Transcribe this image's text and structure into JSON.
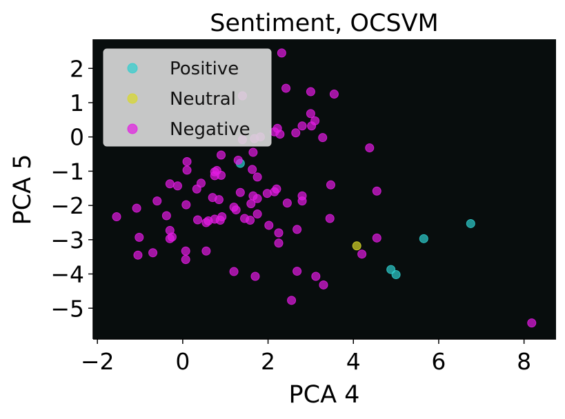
{
  "chart_data": {
    "type": "scatter",
    "title": "Sentiment, OCSVM",
    "xlabel": "PCA 4",
    "ylabel": "PCA 5",
    "xlim": [
      -2.1,
      8.75
    ],
    "ylim": [
      -5.9,
      2.85
    ],
    "xticks": [
      -2,
      0,
      2,
      4,
      6,
      8
    ],
    "yticks": [
      2,
      1,
      0,
      -1,
      -2,
      -3,
      -4,
      -5
    ],
    "xtick_labels": [
      "−2",
      "0",
      "2",
      "4",
      "6",
      "8"
    ],
    "ytick_labels": [
      "2",
      "1",
      "0",
      "−1",
      "−2",
      "−3",
      "−4",
      "−5"
    ],
    "grid": false,
    "legend_position": "top-left",
    "background_color": "#080d0d",
    "series": [
      {
        "name": "Positive",
        "color": "#2ecfcf",
        "points": [
          [
            1.35,
            -0.77
          ],
          [
            4.88,
            -3.87
          ],
          [
            5.0,
            -4.02
          ],
          [
            5.65,
            -2.97
          ],
          [
            6.75,
            -2.53
          ]
        ]
      },
      {
        "name": "Neutral",
        "color": "#d8d82a",
        "points": [
          [
            4.08,
            -3.18
          ]
        ]
      },
      {
        "name": "Negative",
        "color": "#e31be3",
        "points": [
          [
            2.32,
            2.45
          ],
          [
            2.42,
            1.42
          ],
          [
            3.0,
            1.32
          ],
          [
            3.55,
            1.25
          ],
          [
            1.4,
            1.2
          ],
          [
            3.0,
            0.68
          ],
          [
            3.1,
            0.47
          ],
          [
            2.8,
            0.32
          ],
          [
            3.02,
            0.32
          ],
          [
            2.15,
            0.15
          ],
          [
            2.22,
            0.25
          ],
          [
            2.28,
            0.08
          ],
          [
            2.65,
            0.12
          ],
          [
            1.4,
            -0.08
          ],
          [
            1.68,
            -0.05
          ],
          [
            1.82,
            0.0
          ],
          [
            3.28,
            -0.02
          ],
          [
            4.38,
            -0.32
          ],
          [
            1.65,
            -0.45
          ],
          [
            0.9,
            -0.53
          ],
          [
            1.3,
            -0.68
          ],
          [
            0.1,
            -0.72
          ],
          [
            0.1,
            -0.97
          ],
          [
            1.63,
            -0.95
          ],
          [
            0.75,
            -1.02
          ],
          [
            0.8,
            -0.98
          ],
          [
            0.75,
            -1.13
          ],
          [
            0.9,
            -1.12
          ],
          [
            1.75,
            -1.17
          ],
          [
            -0.3,
            -1.37
          ],
          [
            -0.12,
            -1.43
          ],
          [
            0.43,
            -1.35
          ],
          [
            0.33,
            -1.52
          ],
          [
            3.47,
            -1.4
          ],
          [
            4.55,
            -1.58
          ],
          [
            2.15,
            -1.6
          ],
          [
            2.2,
            -1.52
          ],
          [
            1.98,
            -1.65
          ],
          [
            1.35,
            -1.62
          ],
          [
            1.65,
            -1.72
          ],
          [
            1.75,
            -1.8
          ],
          [
            0.7,
            -1.77
          ],
          [
            0.85,
            -1.83
          ],
          [
            -0.6,
            -1.87
          ],
          [
            0.08,
            -1.98
          ],
          [
            1.2,
            -2.05
          ],
          [
            1.25,
            -2.13
          ],
          [
            1.6,
            -1.95
          ],
          [
            2.45,
            -1.93
          ],
          [
            2.8,
            -1.72
          ],
          [
            2.8,
            -1.87
          ],
          [
            -1.55,
            -2.33
          ],
          [
            -1.08,
            -2.08
          ],
          [
            0.35,
            -2.42
          ],
          [
            0.55,
            -2.5
          ],
          [
            0.6,
            -2.45
          ],
          [
            0.75,
            -2.4
          ],
          [
            0.88,
            -2.43
          ],
          [
            0.92,
            -2.33
          ],
          [
            1.45,
            -2.38
          ],
          [
            1.58,
            -2.43
          ],
          [
            1.75,
            -2.25
          ],
          [
            2.02,
            -2.58
          ],
          [
            2.25,
            -2.8
          ],
          [
            2.68,
            -2.7
          ],
          [
            3.45,
            -2.38
          ],
          [
            -0.38,
            -2.3
          ],
          [
            -0.3,
            -2.73
          ],
          [
            -0.3,
            -2.97
          ],
          [
            -0.25,
            -2.92
          ],
          [
            -1.02,
            -2.93
          ],
          [
            2.25,
            -3.1
          ],
          [
            4.55,
            -2.95
          ],
          [
            0.07,
            -3.33
          ],
          [
            0.55,
            -3.33
          ],
          [
            -0.7,
            -3.38
          ],
          [
            -1.05,
            -3.45
          ],
          [
            0.07,
            -3.58
          ],
          [
            4.2,
            -3.42
          ],
          [
            1.2,
            -3.93
          ],
          [
            1.7,
            -4.07
          ],
          [
            2.68,
            -3.92
          ],
          [
            3.12,
            -4.07
          ],
          [
            3.3,
            -4.32
          ],
          [
            2.55,
            -4.77
          ],
          [
            8.18,
            -5.43
          ]
        ]
      }
    ]
  }
}
